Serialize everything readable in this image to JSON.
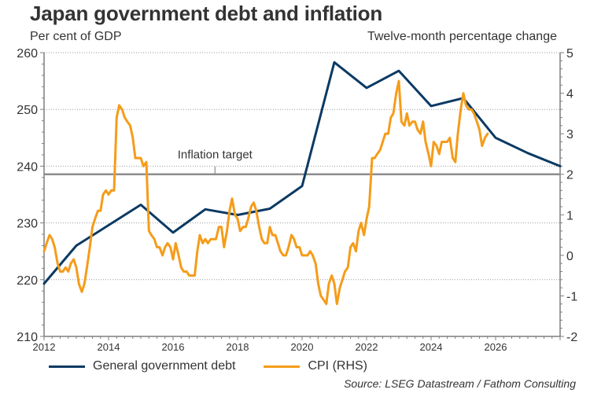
{
  "title": "Japan government debt and inflation",
  "left_axis_unit": "Per cent of GDP",
  "right_axis_unit": "Twelve-month percentage change",
  "source": "Source: LSEG Datastream / Fathom Consulting",
  "colors": {
    "debt": "#0b3a63",
    "cpi": "#f59c1a",
    "target": "#8c8c8c",
    "grid": "#9a9a9a",
    "axis": "#7f7f7f"
  },
  "legend": [
    {
      "label": "General government debt",
      "series": "debt"
    },
    {
      "label": "CPI (RHS)",
      "series": "cpi"
    }
  ],
  "annotation": {
    "label": "Inflation target",
    "value": 2,
    "x": 2017.3
  },
  "chart_data": {
    "type": "line",
    "title": "Japan government debt and inflation",
    "xlabel": "",
    "ylabel": "Per cent of GDP",
    "y2label": "Twelve-month percentage change",
    "xlim": [
      2012,
      2028
    ],
    "ylim": [
      210,
      260
    ],
    "y2lim": [
      -2,
      5
    ],
    "x_ticks": [
      "2012",
      "2014",
      "2016",
      "2018",
      "2020",
      "2022",
      "2024",
      "2026"
    ],
    "x_tick_values": [
      2012,
      2014,
      2016,
      2018,
      2020,
      2022,
      2024,
      2026
    ],
    "y_ticks": [
      "210",
      "220",
      "230",
      "240",
      "250",
      "260"
    ],
    "y_tick_values": [
      210,
      220,
      230,
      240,
      250,
      260
    ],
    "y2_ticks": [
      "-2",
      "-1",
      "0",
      "1",
      "2",
      "3",
      "4",
      "5"
    ],
    "y2_tick_values": [
      -2,
      -1,
      0,
      1,
      2,
      3,
      4,
      5
    ],
    "grid": true,
    "legend_position": "bottom",
    "series": [
      {
        "name": "General government debt",
        "axis": "left",
        "x": [
          2012,
          2013,
          2014,
          2015,
          2016,
          2017,
          2018,
          2019,
          2020,
          2021,
          2022,
          2023,
          2024,
          2025,
          2026,
          2027,
          2028
        ],
        "values": [
          219.3,
          226.0,
          229.6,
          233.2,
          228.3,
          232.4,
          231.4,
          232.5,
          236.5,
          258.3,
          253.8,
          256.8,
          250.6,
          252.0,
          245.0,
          242.3,
          240.0
        ]
      },
      {
        "name": "CPI (RHS)",
        "axis": "right",
        "x": [
          2012.0,
          2012.08,
          2012.17,
          2012.25,
          2012.33,
          2012.42,
          2012.5,
          2012.58,
          2012.67,
          2012.75,
          2012.83,
          2012.92,
          2013.0,
          2013.08,
          2013.17,
          2013.25,
          2013.33,
          2013.42,
          2013.5,
          2013.58,
          2013.67,
          2013.75,
          2013.83,
          2013.92,
          2014.0,
          2014.08,
          2014.17,
          2014.25,
          2014.33,
          2014.42,
          2014.5,
          2014.58,
          2014.67,
          2014.75,
          2014.83,
          2014.92,
          2015.0,
          2015.08,
          2015.17,
          2015.25,
          2015.33,
          2015.42,
          2015.5,
          2015.58,
          2015.67,
          2015.75,
          2015.83,
          2015.92,
          2016.0,
          2016.08,
          2016.17,
          2016.25,
          2016.33,
          2016.42,
          2016.5,
          2016.58,
          2016.67,
          2016.75,
          2016.83,
          2016.92,
          2017.0,
          2017.08,
          2017.17,
          2017.25,
          2017.33,
          2017.42,
          2017.5,
          2017.58,
          2017.67,
          2017.75,
          2017.83,
          2017.92,
          2018.0,
          2018.08,
          2018.17,
          2018.25,
          2018.33,
          2018.42,
          2018.5,
          2018.58,
          2018.67,
          2018.75,
          2018.83,
          2018.92,
          2019.0,
          2019.08,
          2019.17,
          2019.25,
          2019.33,
          2019.42,
          2019.5,
          2019.58,
          2019.67,
          2019.75,
          2019.83,
          2019.92,
          2020.0,
          2020.08,
          2020.17,
          2020.25,
          2020.33,
          2020.42,
          2020.5,
          2020.58,
          2020.67,
          2020.75,
          2020.83,
          2020.92,
          2021.0,
          2021.08,
          2021.17,
          2021.25,
          2021.33,
          2021.42,
          2021.5,
          2021.58,
          2021.67,
          2021.75,
          2021.83,
          2021.92,
          2022.0,
          2022.08,
          2022.17,
          2022.25,
          2022.33,
          2022.42,
          2022.5,
          2022.58,
          2022.67,
          2022.75,
          2022.83,
          2022.92,
          2023.0,
          2023.08,
          2023.17,
          2023.25,
          2023.33,
          2023.42,
          2023.5,
          2023.58,
          2023.67,
          2023.75,
          2023.83,
          2023.92,
          2024.0,
          2024.08,
          2024.17,
          2024.25,
          2024.33,
          2024.42,
          2024.5,
          2024.58,
          2024.67,
          2024.75,
          2024.83,
          2024.92,
          2025.0,
          2025.08,
          2025.17,
          2025.25,
          2025.33,
          2025.42,
          2025.5,
          2025.58,
          2025.67,
          2025.75
        ],
        "values": [
          0.1,
          0.3,
          0.5,
          0.4,
          0.2,
          -0.2,
          -0.4,
          -0.4,
          -0.3,
          -0.4,
          -0.2,
          -0.1,
          -0.3,
          -0.7,
          -0.9,
          -0.7,
          -0.3,
          0.2,
          0.7,
          0.9,
          1.1,
          1.1,
          1.5,
          1.6,
          1.5,
          1.6,
          1.6,
          3.4,
          3.7,
          3.6,
          3.4,
          3.3,
          3.2,
          2.9,
          2.4,
          2.4,
          2.4,
          2.2,
          2.3,
          0.6,
          0.5,
          0.4,
          0.2,
          0.2,
          0.0,
          0.2,
          0.3,
          0.2,
          -0.1,
          0.3,
          0.0,
          -0.3,
          -0.4,
          -0.4,
          -0.5,
          -0.5,
          -0.5,
          0.1,
          0.5,
          0.3,
          0.4,
          0.3,
          0.4,
          0.4,
          0.4,
          0.7,
          0.7,
          0.2,
          0.6,
          1.1,
          1.4,
          1.0,
          0.9,
          0.6,
          0.7,
          0.7,
          0.9,
          1.2,
          1.3,
          1.1,
          0.7,
          0.4,
          0.3,
          0.3,
          0.7,
          0.5,
          0.5,
          0.3,
          0.1,
          0.0,
          0.0,
          0.2,
          0.5,
          0.4,
          0.2,
          0.2,
          0.0,
          0.0,
          0.0,
          0.1,
          0.0,
          -0.2,
          -0.7,
          -1.0,
          -1.1,
          -1.2,
          -0.7,
          -0.5,
          -0.7,
          -1.2,
          -0.8,
          -0.6,
          -0.4,
          -0.3,
          0.2,
          0.3,
          0.1,
          0.6,
          0.8,
          0.5,
          0.9,
          1.2,
          2.4,
          2.4,
          2.5,
          2.6,
          2.8,
          3.0,
          3.0,
          3.4,
          3.5,
          4.0,
          4.3,
          3.3,
          3.2,
          3.5,
          3.2,
          3.3,
          3.3,
          3.1,
          3.0,
          3.3,
          2.8,
          2.5,
          2.2,
          2.8,
          2.7,
          2.5,
          2.8,
          2.8,
          2.8,
          2.9,
          2.4,
          2.3,
          3.0,
          3.6,
          4.0,
          3.7,
          3.6,
          3.6,
          3.5,
          3.3,
          3.1,
          2.7,
          2.9,
          3.0
        ]
      }
    ]
  }
}
